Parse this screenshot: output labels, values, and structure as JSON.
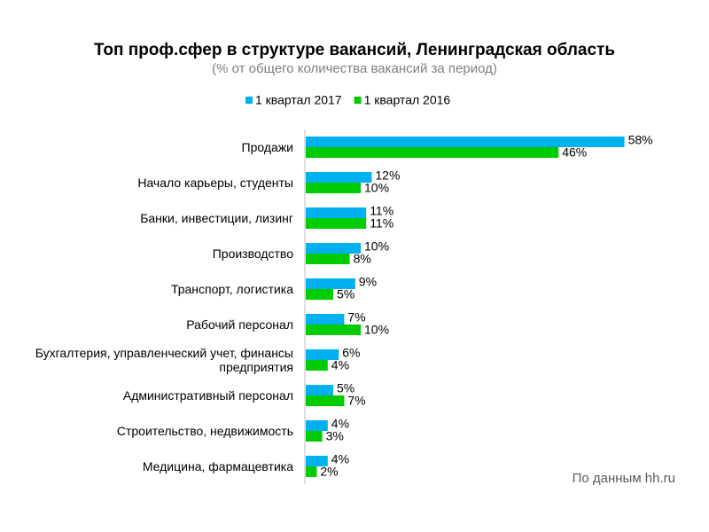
{
  "chart_data": {
    "type": "bar",
    "orientation": "horizontal",
    "title": "Топ проф.сфер в структуре вакансий, Ленинградская область",
    "subtitle": "(% от общего количества вакансий за период)",
    "source": "По данным hh.ru",
    "categories": [
      "Продажи",
      "Начало карьеры, студенты",
      "Банки, инвестиции, лизинг",
      "Производство",
      "Транспорт, логистика",
      "Рабочий персонал",
      "Бухгалтерия, управленческий учет, финансы предприятия",
      "Административный персонал",
      "Строительство, недвижимость",
      "Медицина, фармацевтика"
    ],
    "series": [
      {
        "name": "1 квартал 2017",
        "color": "#00b0f0",
        "values": [
          58,
          12,
          11,
          10,
          9,
          7,
          6,
          5,
          4,
          4
        ],
        "value_labels": [
          "58%",
          "12%",
          "11%",
          "10%",
          "9%",
          "7%",
          "6%",
          "5%",
          "4%",
          "4%"
        ]
      },
      {
        "name": "1 квартал 2016",
        "color": "#00cc00",
        "values": [
          46,
          10,
          11,
          8,
          5,
          10,
          4,
          7,
          3,
          2
        ],
        "value_labels": [
          "46%",
          "10%",
          "11%",
          "8%",
          "5%",
          "10%",
          "4%",
          "7%",
          "3%",
          "2%"
        ]
      }
    ],
    "legend": "top"
  }
}
